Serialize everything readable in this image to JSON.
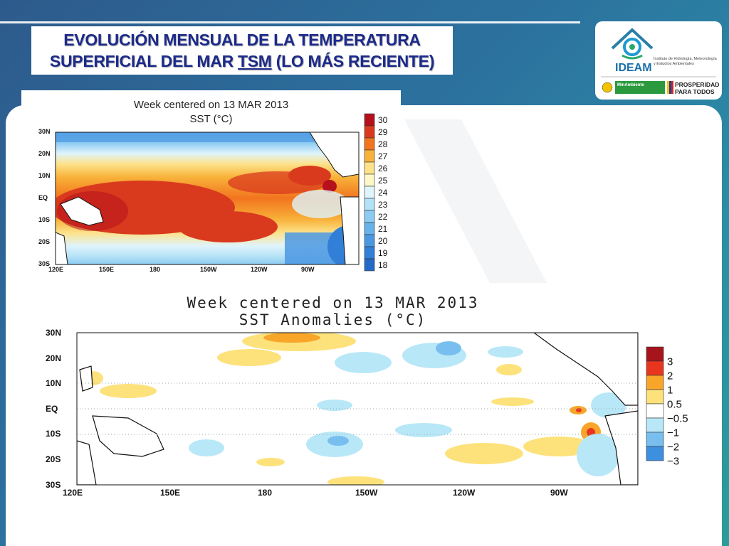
{
  "slide": {
    "title_line1": "EVOLUCIÓN MENSUAL DE LA TEMPERATURA",
    "title_line2_prefix": "SUPERFICIAL DEL MAR ",
    "title_line2_underlined": "TSM",
    "title_line2_suffix": " (LO MÁS RECIENTE)"
  },
  "logos": {
    "ideam_name": "IDEAM",
    "ideam_full_name": "Instituto de Hidrología, Meteorología y Estudios Ambientales",
    "ministry": "MinAmbiente",
    "slogan_line1": "PROSPERIDAD",
    "slogan_line2": "PARA TODOS"
  },
  "map_sst": {
    "title_line1": "Week centered on 13 MAR 2013",
    "title_line2": "SST (°C)",
    "lat_labels": [
      "30N",
      "20N",
      "10N",
      "EQ",
      "10S",
      "20S",
      "30S"
    ],
    "lon_labels": [
      "120E",
      "150E",
      "180",
      "150W",
      "120W",
      "90W"
    ],
    "colorbar": [
      {
        "label": "30",
        "color": "#b5101c"
      },
      {
        "label": "29",
        "color": "#d93a1e"
      },
      {
        "label": "28",
        "color": "#f2741e"
      },
      {
        "label": "27",
        "color": "#f8b23a"
      },
      {
        "label": "26",
        "color": "#fde28a"
      },
      {
        "label": "25",
        "color": "#fdf7c8"
      },
      {
        "label": "24",
        "color": "#dff4fb"
      },
      {
        "label": "23",
        "color": "#b4e2f6"
      },
      {
        "label": "22",
        "color": "#8ccbf2"
      },
      {
        "label": "21",
        "color": "#68b2ec"
      },
      {
        "label": "20",
        "color": "#4b98e2"
      },
      {
        "label": "19",
        "color": "#327fd8"
      },
      {
        "label": "18",
        "color": "#2468c8"
      }
    ]
  },
  "map_anom": {
    "title_line1": "Week centered on 13 MAR 2013",
    "title_line2": "SST Anomalies (°C)",
    "lat_labels": [
      "30N",
      "20N",
      "10N",
      "EQ",
      "10S",
      "20S",
      "30S"
    ],
    "lon_labels": [
      "120E",
      "150E",
      "180",
      "150W",
      "120W",
      "90W"
    ],
    "colorbar": [
      {
        "label": "3",
        "color": "#a8141c"
      },
      {
        "label": "2",
        "color": "#e8361e"
      },
      {
        "label": "1",
        "color": "#f8a62a"
      },
      {
        "label": "0.5",
        "color": "#fde27c"
      },
      {
        "label": "−0.5",
        "color": "#ffffff"
      },
      {
        "label": "−1",
        "color": "#b8e8f8"
      },
      {
        "label": "−2",
        "color": "#78bff0"
      },
      {
        "label": "−3",
        "color": "#3d8fe0"
      }
    ]
  }
}
